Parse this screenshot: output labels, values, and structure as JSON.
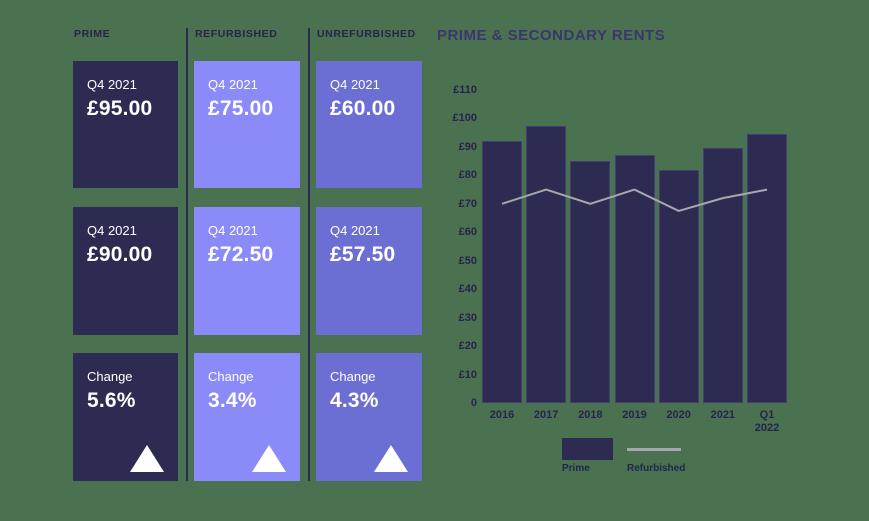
{
  "stats": {
    "columns": [
      {
        "header": "PRIME",
        "cards": [
          {
            "label": "Q4 2021",
            "value": "£95.00"
          },
          {
            "label": "Q4 2021",
            "value": "£90.00"
          },
          {
            "label": "Change",
            "value": "5.6%",
            "trend": "up"
          }
        ]
      },
      {
        "header": "REFURBISHED",
        "cards": [
          {
            "label": "Q4 2021",
            "value": "£75.00"
          },
          {
            "label": "Q4 2021",
            "value": "£72.50"
          },
          {
            "label": "Change",
            "value": "3.4%",
            "trend": "up"
          }
        ]
      },
      {
        "header": "UNREFURBISHED",
        "cards": [
          {
            "label": "Q4 2021",
            "value": "£60.00"
          },
          {
            "label": "Q4 2021",
            "value": "£57.50"
          },
          {
            "label": "Change",
            "value": "4.3%",
            "trend": "up"
          }
        ]
      }
    ]
  },
  "chart_data": {
    "type": "bar",
    "title": "PRIME & SECONDARY RENTS",
    "categories": [
      "2016",
      "2017",
      "2018",
      "2019",
      "2020",
      "2021",
      "Q1\n2022"
    ],
    "series": [
      {
        "name": "Prime",
        "type": "bar",
        "values": [
          92,
          97.5,
          85,
          87,
          82,
          89.5,
          94.5
        ]
      },
      {
        "name": "Refurbished",
        "type": "line",
        "values": [
          70,
          75,
          70,
          75,
          67.5,
          72,
          75
        ]
      }
    ],
    "ylim": [
      0,
      110
    ],
    "yticks": [
      0,
      10,
      20,
      30,
      40,
      50,
      60,
      70,
      80,
      90,
      100,
      110
    ],
    "ytick_labels": [
      "0",
      "£10",
      "£20",
      "£30",
      "£40",
      "£50",
      "£60",
      "£70",
      "£80",
      "£90",
      "£100",
      "£110"
    ],
    "xlabel": "",
    "ylabel": "",
    "grid": false,
    "legend_position": "bottom",
    "legend": [
      {
        "label": "Prime",
        "swatch": "bar"
      },
      {
        "label": "Refurbished",
        "swatch": "line"
      }
    ]
  },
  "colors": {
    "background": "#4A7150",
    "prime": "#2E2B52",
    "refurbished": "#8A8BF8",
    "unrefurbished": "#6B6ED2",
    "line": "#A7A7AF",
    "title": "#3B366E",
    "text_dark": "#26244C",
    "card_text": "#FFFFFF"
  }
}
